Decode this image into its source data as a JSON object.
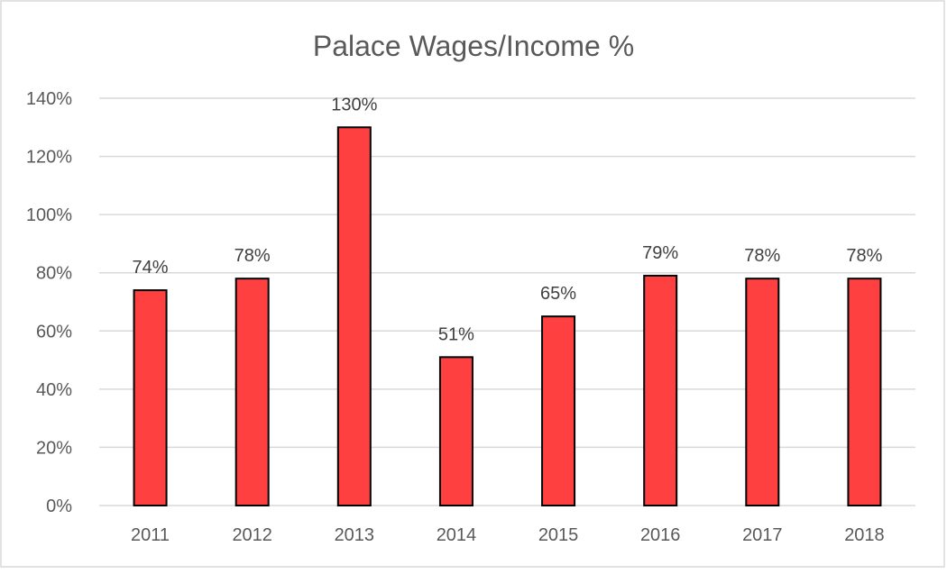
{
  "chart_data": {
    "type": "bar",
    "title": "Palace Wages/Income %",
    "xlabel": "",
    "ylabel": "",
    "categories": [
      "2011",
      "2012",
      "2013",
      "2014",
      "2015",
      "2016",
      "2017",
      "2018"
    ],
    "values": [
      74,
      78,
      130,
      51,
      65,
      79,
      78,
      78
    ],
    "data_labels": [
      "74%",
      "78%",
      "130%",
      "51%",
      "65%",
      "79%",
      "78%",
      "78%"
    ],
    "ylim": [
      0,
      140
    ],
    "yticks": [
      0,
      20,
      40,
      60,
      80,
      100,
      120,
      140
    ],
    "ytick_labels": [
      "0%",
      "20%",
      "40%",
      "60%",
      "80%",
      "100%",
      "120%",
      "140%"
    ],
    "grid": true,
    "legend": "none",
    "bar_color": "#ff4040",
    "bar_outline": "#000000"
  }
}
